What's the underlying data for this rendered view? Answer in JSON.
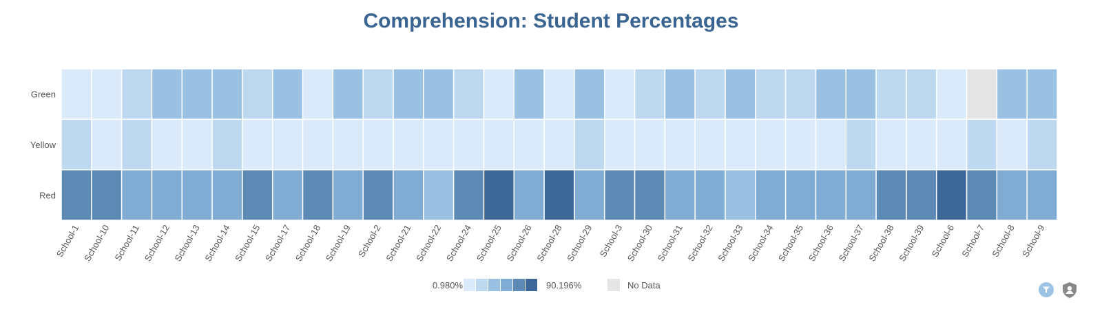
{
  "title": "Comprehension: Student Percentages",
  "colors": {
    "title": "#3a6592",
    "scale": [
      "#dbeafa",
      "#bed8f0",
      "#9bc1e2",
      "#80acd3",
      "#5c8ab5",
      "#3c6796"
    ],
    "no_data": "#e5e5e5",
    "filter_button": "#9cc3e4",
    "privacy_icon": "#888888"
  },
  "legend": {
    "min_label": "0.980%",
    "max_label": "90.196%",
    "no_data_label": "No Data"
  },
  "icons": {
    "filter": "filter-icon",
    "privacy": "shield-person-icon"
  },
  "chart_data": {
    "type": "heatmap",
    "title": "Comprehension: Student Percentages",
    "x_categories": [
      "School-1",
      "School-10",
      "School-11",
      "School-12",
      "School-13",
      "School-14",
      "School-15",
      "School-17",
      "School-18",
      "School-19",
      "School-2",
      "School-21",
      "School-22",
      "School-24",
      "School-25",
      "School-26",
      "School-28",
      "School-29",
      "School-3",
      "School-30",
      "School-31",
      "School-32",
      "School-33",
      "School-34",
      "School-35",
      "School-36",
      "School-37",
      "School-38",
      "School-39",
      "School-6",
      "School-7",
      "School-8",
      "School-9"
    ],
    "y_categories": [
      "Green",
      "Yellow",
      "Red"
    ],
    "color_range": [
      0.98,
      90.196
    ],
    "color_levels": 6,
    "values_level": {
      "Green": [
        0,
        0,
        1,
        2,
        2,
        2,
        1,
        2,
        0,
        2,
        1,
        2,
        2,
        1,
        0,
        2,
        0,
        2,
        0,
        1,
        2,
        1,
        2,
        1,
        1,
        2,
        2,
        1,
        1,
        0,
        null,
        2,
        2
      ],
      "Yellow": [
        1,
        0,
        1,
        0,
        0,
        1,
        0,
        0,
        0,
        0,
        0,
        0,
        0,
        0,
        0,
        0,
        0,
        1,
        0,
        0,
        0,
        0,
        0,
        0,
        0,
        0,
        1,
        0,
        0,
        0,
        1,
        0,
        1
      ],
      "Red": [
        4,
        4,
        3,
        3,
        3,
        3,
        4,
        3,
        4,
        3,
        4,
        3,
        2,
        4,
        5,
        3,
        5,
        3,
        4,
        4,
        3,
        3,
        2,
        3,
        3,
        3,
        3,
        4,
        4,
        5,
        4,
        3,
        3
      ]
    },
    "legend": {
      "min": "0.980%",
      "max": "90.196%",
      "no_data": "No Data"
    }
  }
}
